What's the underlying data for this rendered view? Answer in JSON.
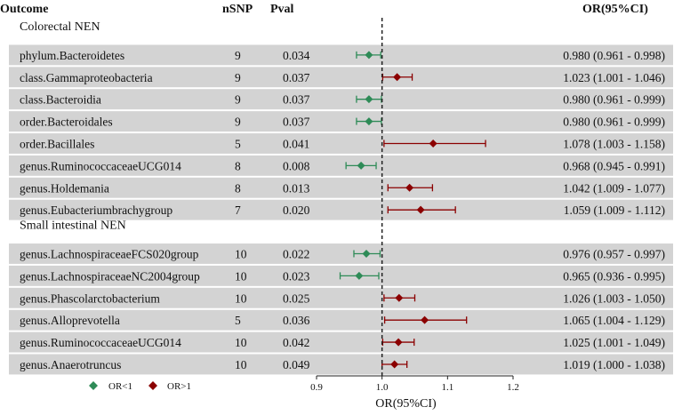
{
  "header": {
    "outcome": "Outcome",
    "nsnp": "nSNP",
    "pval": "Pval",
    "or": "OR(95%CI)"
  },
  "legend": {
    "lt": "OR<1",
    "gt": "OR>1"
  },
  "colors": {
    "protective": "#2e8b57",
    "risk": "#8b0000",
    "band": "#d3d3d3",
    "text": "#111111"
  },
  "chart_data": {
    "type": "forest",
    "xlabel": "OR(95%CI)",
    "xlim": [
      0.9,
      1.2
    ],
    "xticks": [
      0.9,
      1.0,
      1.1,
      1.2
    ],
    "xtick_labels": [
      "0.9",
      "1.0",
      "1.1",
      "1.2"
    ],
    "reference_line": 1.0,
    "groups": [
      {
        "name": "Colorectal NEN",
        "rows": [
          {
            "outcome": "phylum.Bacteroidetes",
            "nsnp": "9",
            "pval": "0.034",
            "or": 0.98,
            "lo": 0.961,
            "hi": 0.998,
            "label": "0.980 (0.961 - 0.998)"
          },
          {
            "outcome": "class.Gammaproteobacteria",
            "nsnp": "9",
            "pval": "0.037",
            "or": 1.023,
            "lo": 1.001,
            "hi": 1.046,
            "label": "1.023 (1.001 - 1.046)"
          },
          {
            "outcome": "class.Bacteroidia",
            "nsnp": "9",
            "pval": "0.037",
            "or": 0.98,
            "lo": 0.961,
            "hi": 0.999,
            "label": "0.980 (0.961 - 0.999)"
          },
          {
            "outcome": "order.Bacteroidales",
            "nsnp": "9",
            "pval": "0.037",
            "or": 0.98,
            "lo": 0.961,
            "hi": 0.999,
            "label": "0.980 (0.961 - 0.999)"
          },
          {
            "outcome": "order.Bacillales",
            "nsnp": "5",
            "pval": "0.041",
            "or": 1.078,
            "lo": 1.003,
            "hi": 1.158,
            "label": "1.078 (1.003 - 1.158)"
          },
          {
            "outcome": "genus.RuminococcaceaeUCG014",
            "nsnp": "8",
            "pval": "0.008",
            "or": 0.968,
            "lo": 0.945,
            "hi": 0.991,
            "label": "0.968 (0.945 - 0.991)"
          },
          {
            "outcome": "genus.Holdemania",
            "nsnp": "8",
            "pval": "0.013",
            "or": 1.042,
            "lo": 1.009,
            "hi": 1.077,
            "label": "1.042 (1.009 - 1.077)"
          },
          {
            "outcome": "genus.Eubacteriumbrachygroup",
            "nsnp": "7",
            "pval": "0.020",
            "or": 1.059,
            "lo": 1.009,
            "hi": 1.112,
            "label": "1.059 (1.009 - 1.112)"
          }
        ]
      },
      {
        "name": "Small intestinal NEN",
        "rows": [
          {
            "outcome": "genus.LachnospiraceaeFCS020group",
            "nsnp": "10",
            "pval": "0.022",
            "or": 0.976,
            "lo": 0.957,
            "hi": 0.997,
            "label": "0.976 (0.957 - 0.997)"
          },
          {
            "outcome": "genus.LachnospiraceaeNC2004group",
            "nsnp": "10",
            "pval": "0.023",
            "or": 0.965,
            "lo": 0.936,
            "hi": 0.995,
            "label": "0.965 (0.936 - 0.995)"
          },
          {
            "outcome": "genus.Phascolarctobacterium",
            "nsnp": "10",
            "pval": "0.025",
            "or": 1.026,
            "lo": 1.003,
            "hi": 1.05,
            "label": "1.026 (1.003 - 1.050)"
          },
          {
            "outcome": "genus.Alloprevotella",
            "nsnp": "5",
            "pval": "0.036",
            "or": 1.065,
            "lo": 1.004,
            "hi": 1.129,
            "label": "1.065 (1.004 - 1.129)"
          },
          {
            "outcome": "genus.RuminococcaceaeUCG014",
            "nsnp": "10",
            "pval": "0.042",
            "or": 1.025,
            "lo": 1.001,
            "hi": 1.049,
            "label": "1.025 (1.001 - 1.049)"
          },
          {
            "outcome": "genus.Anaerotruncus",
            "nsnp": "10",
            "pval": "0.049",
            "or": 1.019,
            "lo": 1.0,
            "hi": 1.038,
            "label": "1.019 (1.000 - 1.038)"
          }
        ]
      }
    ]
  }
}
